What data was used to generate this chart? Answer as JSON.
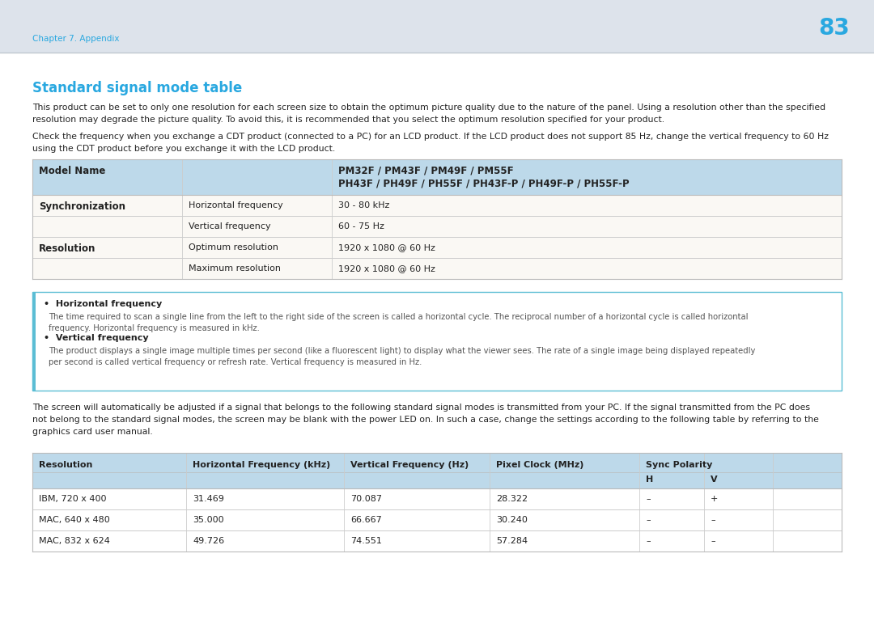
{
  "page_bg": "#dde3eb",
  "content_bg": "#ffffff",
  "page_number": "83",
  "chapter_label": "Chapter 7. Appendix",
  "header_color": "#29a8e0",
  "title": "Standard signal mode table",
  "para1_line1": "This product can be set to only one resolution for each screen size to obtain the optimum picture quality due to the nature of the panel. Using a resolution other than the specified",
  "para1_line2": "resolution may degrade the picture quality. To avoid this, it is recommended that you select the optimum resolution specified for your product.",
  "para2_line1": "Check the frequency when you exchange a CDT product (connected to a PC) for an LCD product. If the LCD product does not support 85 Hz, change the vertical frequency to 60 Hz",
  "para2_line2": "using the CDT product before you exchange it with the LCD product.",
  "table1_header_bg": "#bdd9ea",
  "table1_row_bg1": "#faf8f4",
  "table1_row_bg2": "#faf8f4",
  "table1_col1_header": "Model Name",
  "table1_col2_header_line1": "PM32F / PM43F / PM49F / PM55F",
  "table1_col2_header_line2": "PH43F / PH49F / PH55F / PH43F-P / PH49F-P / PH55F-P",
  "table1_rows": [
    {
      "cat": "Synchronization",
      "label": "Horizontal frequency",
      "value": "30 - 80 kHz"
    },
    {
      "cat": "",
      "label": "Vertical frequency",
      "value": "60 - 75 Hz"
    },
    {
      "cat": "Resolution",
      "label": "Optimum resolution",
      "value": "1920 x 1080 @ 60 Hz"
    },
    {
      "cat": "",
      "label": "Maximum resolution",
      "value": "1920 x 1080 @ 60 Hz"
    }
  ],
  "note_border_color": "#5bbdd4",
  "note_left_bar_color": "#5bbdd4",
  "note_bg": "#ffffff",
  "note_bullet1_title": "Horizontal frequency",
  "note_bullet1_body1": "The time required to scan a single line from the left to the right side of the screen is called a horizontal cycle. The reciprocal number of a horizontal cycle is called horizontal",
  "note_bullet1_body2": "frequency. Horizontal frequency is measured in kHz.",
  "note_bullet2_title": "Vertical frequency",
  "note_bullet2_body1": "The product displays a single image multiple times per second (like a fluorescent light) to display what the viewer sees. The rate of a single image being displayed repeatedly",
  "note_bullet2_body2": "per second is called vertical frequency or refresh rate. Vertical frequency is measured in Hz.",
  "para3_line1": "The screen will automatically be adjusted if a signal that belongs to the following standard signal modes is transmitted from your PC. If the signal transmitted from the PC does",
  "para3_line2": "not belong to the standard signal modes, the screen may be blank with the power LED on. In such a case, change the settings according to the following table by referring to the",
  "para3_line3": "graphics card user manual.",
  "table2_header_bg": "#bdd9ea",
  "table2_headers": [
    "Resolution",
    "Horizontal Frequency (kHz)",
    "Vertical Frequency (Hz)",
    "Pixel Clock (MHz)",
    "Sync Polarity"
  ],
  "table2_hv": [
    "H",
    "V"
  ],
  "table2_rows": [
    [
      "IBM, 720 x 400",
      "31.469",
      "70.087",
      "28.322",
      "–",
      "+"
    ],
    [
      "MAC, 640 x 480",
      "35.000",
      "66.667",
      "30.240",
      "–",
      "–"
    ],
    [
      "MAC, 832 x 624",
      "49.726",
      "74.551",
      "57.284",
      "–",
      "–"
    ]
  ],
  "text_dark": "#222222",
  "text_gray": "#555555",
  "text_light": "#666666",
  "border_color": "#bbbbbb",
  "divider_color": "#cccccc"
}
